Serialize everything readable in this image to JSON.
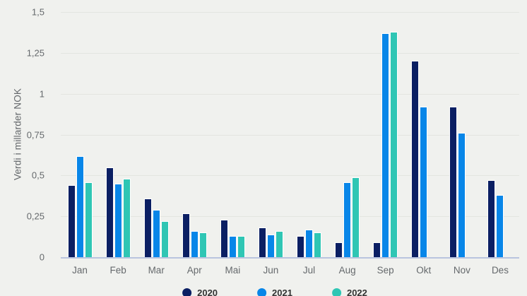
{
  "chart_data": {
    "type": "bar",
    "title": "",
    "xlabel": "",
    "ylabel": "Verdi i millarder NOK",
    "ylim": [
      0,
      1.5
    ],
    "ytick_values": [
      0,
      0.25,
      0.5,
      0.75,
      1,
      1.25,
      1.5
    ],
    "ytick_labels": [
      "0",
      "0,25",
      "0,5",
      "0,75",
      "1",
      "1,25",
      "1,5"
    ],
    "grid": true,
    "legend_position": "bottom",
    "decimal_separator": ",",
    "categories": [
      "Jan",
      "Feb",
      "Mar",
      "Apr",
      "Mai",
      "Jun",
      "Jul",
      "Aug",
      "Sep",
      "Okt",
      "Nov",
      "Des"
    ],
    "series": [
      {
        "name": "2020",
        "color": "#0b1f63",
        "values": [
          0.44,
          0.55,
          0.36,
          0.27,
          0.23,
          0.18,
          0.13,
          0.09,
          0.09,
          1.2,
          0.92,
          0.47
        ]
      },
      {
        "name": "2021",
        "color": "#0886e8",
        "values": [
          0.62,
          0.45,
          0.29,
          0.16,
          0.13,
          0.14,
          0.17,
          0.46,
          1.37,
          0.92,
          0.76,
          0.38
        ]
      },
      {
        "name": "2022",
        "color": "#2fc6b4",
        "values": [
          0.46,
          0.48,
          0.22,
          0.15,
          0.13,
          0.16,
          0.15,
          0.49,
          1.38,
          null,
          null,
          null
        ]
      }
    ]
  },
  "colors": {
    "background": "#f0f1ee",
    "gridline": "#e3e5e0",
    "axis_line": "#b9c4df",
    "tick_text": "#65696c",
    "legend_text": "#333333",
    "bar_outline": "#ffffff"
  }
}
